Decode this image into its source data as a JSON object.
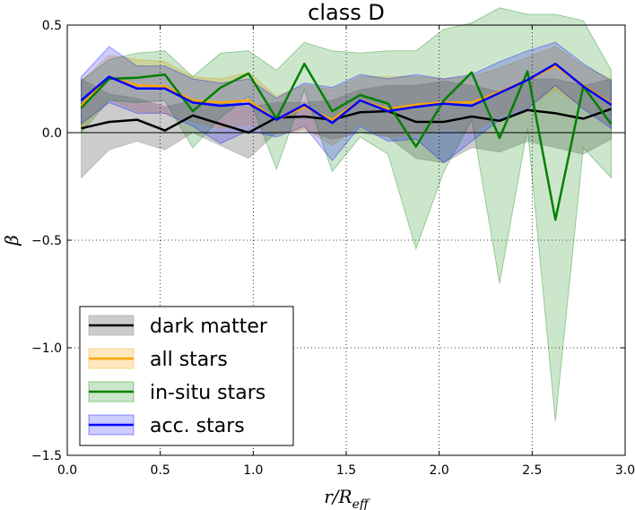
{
  "chart_data": {
    "type": "line",
    "title": "class D",
    "xlabel": "r/R_eff",
    "xlabel_main": "r/R",
    "xlabel_sub": "eff",
    "ylabel": "β",
    "xlim": [
      0.0,
      3.0
    ],
    "ylim": [
      -1.5,
      0.5
    ],
    "xticks": [
      0.0,
      0.5,
      1.0,
      1.5,
      2.0,
      2.5,
      3.0
    ],
    "xtick_labels": [
      "0.0",
      "0.5",
      "1.0",
      "1.5",
      "2.0",
      "2.5",
      "3.0"
    ],
    "yticks": [
      -1.5,
      -1.0,
      -0.5,
      0.0,
      0.5
    ],
    "ytick_labels": [
      "−1.5",
      "−1.0",
      "−0.5",
      "0.0",
      "0.5"
    ],
    "grid": true,
    "legend_position": "lower-left",
    "x": [
      0.075,
      0.225,
      0.375,
      0.525,
      0.675,
      0.825,
      0.975,
      1.125,
      1.275,
      1.425,
      1.575,
      1.725,
      1.875,
      2.025,
      2.175,
      2.325,
      2.475,
      2.625,
      2.775,
      2.925
    ],
    "series": [
      {
        "name": "dark matter",
        "color": "#000000",
        "band_color": "#808080",
        "values": [
          0.02,
          0.05,
          0.06,
          0.01,
          0.08,
          0.04,
          0.0,
          0.07,
          0.075,
          0.06,
          0.095,
          0.1,
          0.05,
          0.05,
          0.075,
          0.055,
          0.105,
          0.09,
          0.065,
          0.11
        ],
        "upper": [
          0.25,
          0.18,
          0.16,
          0.12,
          0.15,
          0.14,
          0.12,
          0.14,
          0.14,
          0.15,
          0.2,
          0.22,
          0.22,
          0.24,
          0.22,
          0.19,
          0.25,
          0.25,
          0.22,
          0.25
        ],
        "lower": [
          -0.21,
          -0.08,
          -0.04,
          -0.08,
          0.0,
          -0.06,
          -0.12,
          0.0,
          0.01,
          -0.03,
          0.0,
          -0.02,
          -0.12,
          -0.14,
          -0.07,
          -0.09,
          -0.04,
          -0.07,
          -0.1,
          -0.03
        ]
      },
      {
        "name": "all stars",
        "color": "#ffa500",
        "band_color": "#ffa500",
        "values": [
          0.125,
          0.26,
          0.22,
          0.215,
          0.15,
          0.14,
          0.15,
          0.06,
          0.12,
          0.06,
          0.15,
          0.11,
          0.13,
          0.14,
          0.14,
          0.19,
          0.245,
          0.31,
          0.22,
          0.135
        ],
        "upper": [
          0.24,
          0.36,
          0.34,
          0.33,
          0.26,
          0.25,
          0.28,
          0.17,
          0.22,
          0.2,
          0.26,
          0.26,
          0.26,
          0.25,
          0.26,
          0.3,
          0.35,
          0.4,
          0.31,
          0.25
        ],
        "lower": [
          0.02,
          0.16,
          0.1,
          0.09,
          0.05,
          0.02,
          0.04,
          -0.01,
          0.02,
          -0.06,
          0.04,
          -0.02,
          -0.01,
          0.02,
          0.0,
          0.08,
          0.12,
          0.2,
          0.12,
          0.03
        ]
      },
      {
        "name": "in-situ stars",
        "color": "#008000",
        "band_color": "#008000",
        "values": [
          0.115,
          0.25,
          0.255,
          0.27,
          0.1,
          0.21,
          0.275,
          0.065,
          0.32,
          0.1,
          0.175,
          0.135,
          -0.065,
          0.15,
          0.28,
          -0.025,
          0.285,
          -0.405,
          0.215,
          0.04
        ],
        "upper": [
          0.24,
          0.34,
          0.37,
          0.38,
          0.26,
          0.37,
          0.38,
          0.29,
          0.42,
          0.38,
          0.37,
          0.38,
          0.38,
          0.48,
          0.51,
          0.58,
          0.55,
          0.55,
          0.52,
          0.29
        ],
        "lower": [
          0.0,
          0.15,
          0.14,
          0.15,
          -0.07,
          0.07,
          0.17,
          -0.17,
          0.2,
          -0.18,
          -0.02,
          -0.1,
          -0.54,
          -0.18,
          0.06,
          -0.7,
          0.02,
          -1.34,
          -0.07,
          -0.21
        ]
      },
      {
        "name": "acc. stars",
        "color": "#0000ff",
        "band_color": "#0000ff",
        "values": [
          0.15,
          0.26,
          0.205,
          0.205,
          0.14,
          0.125,
          0.135,
          0.06,
          0.13,
          0.045,
          0.15,
          0.1,
          0.12,
          0.135,
          0.125,
          0.185,
          0.245,
          0.32,
          0.215,
          0.13
        ],
        "upper": [
          0.26,
          0.4,
          0.31,
          0.31,
          0.25,
          0.23,
          0.25,
          0.16,
          0.23,
          0.21,
          0.27,
          0.25,
          0.27,
          0.25,
          0.27,
          0.33,
          0.38,
          0.42,
          0.32,
          0.24
        ],
        "lower": [
          0.04,
          0.14,
          0.09,
          0.09,
          0.03,
          -0.05,
          0.01,
          -0.02,
          0.03,
          -0.13,
          0.03,
          -0.04,
          -0.03,
          -0.14,
          -0.04,
          0.06,
          0.11,
          0.22,
          0.11,
          0.02
        ]
      }
    ]
  }
}
